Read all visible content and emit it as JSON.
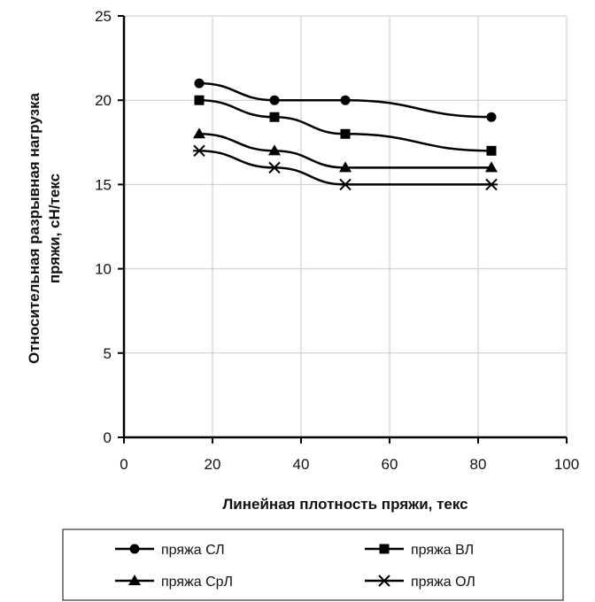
{
  "chart_data": {
    "type": "line",
    "xlabel": "Линейная плотность пряжи, текс",
    "ylabel_line1": "Относительная разрывная нагрузка",
    "ylabel_line2": "пряжи, сН/текс",
    "xlim": [
      0,
      100
    ],
    "ylim": [
      0,
      25
    ],
    "xticks": [
      "0",
      "20",
      "40",
      "60",
      "80",
      "100"
    ],
    "yticks": [
      "0",
      "5",
      "10",
      "15",
      "20",
      "25"
    ],
    "grid": true,
    "legend_position": "bottom",
    "series": [
      {
        "name": "пряжа СЛ",
        "marker": "circle",
        "points": [
          [
            17,
            21
          ],
          [
            34,
            20
          ],
          [
            50,
            20
          ],
          [
            83,
            19
          ]
        ]
      },
      {
        "name": "пряжа ВЛ",
        "marker": "square",
        "points": [
          [
            17,
            20
          ],
          [
            34,
            19
          ],
          [
            50,
            18
          ],
          [
            83,
            17
          ]
        ]
      },
      {
        "name": "пряжа СрЛ",
        "marker": "triangle",
        "points": [
          [
            17,
            18
          ],
          [
            34,
            17
          ],
          [
            50,
            16
          ],
          [
            83,
            16
          ]
        ]
      },
      {
        "name": "пряжа ОЛ",
        "marker": "asterisk",
        "points": [
          [
            17,
            17
          ],
          [
            34,
            16
          ],
          [
            50,
            15
          ],
          [
            83,
            15
          ]
        ]
      }
    ]
  }
}
